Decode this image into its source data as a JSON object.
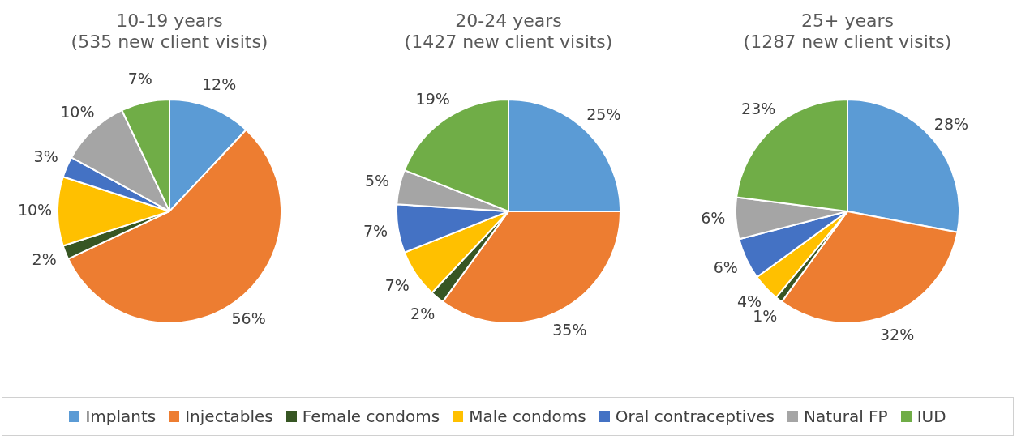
{
  "chart_data": [
    {
      "type": "pie",
      "title": "10-19 years\n(535 new client visits)",
      "categories": [
        "Implants",
        "Injectables",
        "Female condoms",
        "Male condoms",
        "Oral contraceptives",
        "Natural FP",
        "IUD"
      ],
      "values": [
        12,
        56,
        2,
        10,
        3,
        10,
        7
      ],
      "value_labels": [
        "12%",
        "56%",
        "2%",
        "10%",
        "3%",
        "10%",
        "7%"
      ],
      "colors": [
        "#5b9bd5",
        "#ed7d31",
        "#375623",
        "#ffc000",
        "#4472c4",
        "#a5a5a5",
        "#70ad47"
      ],
      "legend": "bottom"
    },
    {
      "type": "pie",
      "title": "20-24 years\n(1427 new client visits)",
      "values": [
        25,
        35,
        2,
        7,
        7,
        5,
        19
      ],
      "value_labels": [
        "25%",
        "35%",
        "2%",
        "7%",
        "7%",
        "5%",
        "19%"
      ],
      "colors": [
        "#5b9bd5",
        "#ed7d31",
        "#375623",
        "#ffc000",
        "#4472c4",
        "#a5a5a5",
        "#70ad47"
      ]
    },
    {
      "type": "pie",
      "title": "25+ years\n(1287 new client visits)",
      "values": [
        28,
        32,
        1,
        4,
        6,
        6,
        23
      ],
      "value_labels": [
        "28%",
        "32%",
        "1%",
        "4%",
        "6%",
        "6%",
        "23%"
      ],
      "colors": [
        "#5b9bd5",
        "#ed7d31",
        "#375623",
        "#ffc000",
        "#4472c4",
        "#a5a5a5",
        "#70ad47"
      ]
    }
  ]
}
